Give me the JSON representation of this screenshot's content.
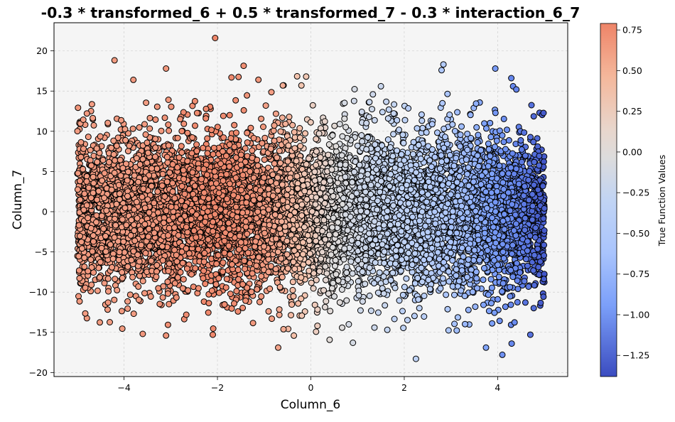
{
  "chart_data": {
    "type": "scatter",
    "title": "-0.3 * transformed_6 + 0.5 * transformed_7 - 0.3 * interaction_6_7",
    "xlabel": "Column_6",
    "ylabel": "Column_7",
    "xlim": [
      -5.5,
      5.5
    ],
    "ylim": [
      -20.5,
      23.5
    ],
    "x_ticks": [
      -4,
      -2,
      0,
      2,
      4
    ],
    "y_ticks": [
      -20,
      -15,
      -10,
      -5,
      0,
      5,
      10,
      15,
      20
    ],
    "grid": true,
    "colorbar": {
      "label": "True Function Values",
      "range": [
        -1.38,
        0.79
      ],
      "ticks": [
        0.75,
        0.5,
        0.25,
        0.0,
        -0.25,
        -0.5,
        -0.75,
        -1.0,
        -1.25
      ],
      "tick_labels": [
        "0.75",
        "0.50",
        "0.25",
        "0.00",
        "−0.25",
        "−0.50",
        "−0.75",
        "−1.00",
        "−1.25"
      ],
      "colormap": "coolwarm"
    },
    "x_domain": [
      -5,
      5
    ],
    "point_count": 9000,
    "outlier_points": [
      {
        "x": -2.05,
        "y": 21.6
      },
      {
        "x": -3.1,
        "y": 17.8
      },
      {
        "x": -3.8,
        "y": 16.4
      },
      {
        "x": -1.7,
        "y": 16.7
      },
      {
        "x": -0.1,
        "y": 16.8
      },
      {
        "x": 1.5,
        "y": 15.6
      },
      {
        "x": 2.8,
        "y": 17.6
      },
      {
        "x": 3.95,
        "y": 17.8
      },
      {
        "x": 4.4,
        "y": 15.2
      },
      {
        "x": -0.6,
        "y": 15.7
      },
      {
        "x": -2.1,
        "y": -15.3
      },
      {
        "x": -0.7,
        "y": -16.9
      },
      {
        "x": 0.9,
        "y": -16.3
      },
      {
        "x": 2.25,
        "y": -18.3
      },
      {
        "x": 3.75,
        "y": -16.9
      },
      {
        "x": 4.3,
        "y": -16.4
      },
      {
        "x": 4.1,
        "y": -17.8
      },
      {
        "x": -3.6,
        "y": -15.2
      },
      {
        "x": -3.1,
        "y": -15.4
      },
      {
        "x": 4.7,
        "y": -15.3
      }
    ]
  }
}
